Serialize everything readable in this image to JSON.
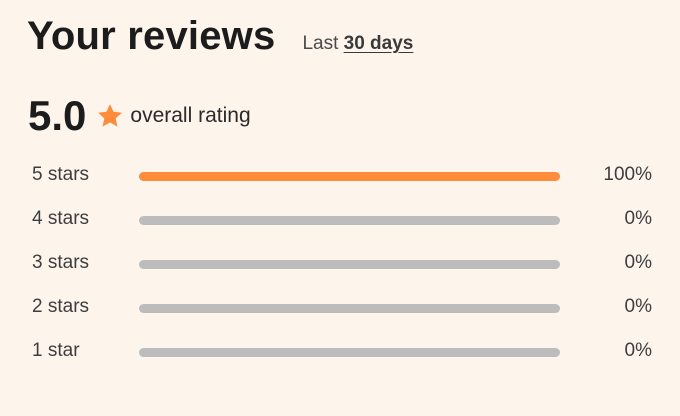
{
  "header": {
    "title": "Your reviews",
    "period_prefix": "Last",
    "period_link": "30 days"
  },
  "overall": {
    "score": "5.0",
    "label": "overall rating",
    "star_icon": "star-icon",
    "accent_color": "#ff8c3a"
  },
  "breakdown": [
    {
      "label": "5 stars",
      "percent_text": "100%",
      "fraction": 1.0
    },
    {
      "label": "4 stars",
      "percent_text": "0%",
      "fraction": 0.0
    },
    {
      "label": "3 stars",
      "percent_text": "0%",
      "fraction": 0.0
    },
    {
      "label": "2 stars",
      "percent_text": "0%",
      "fraction": 0.0
    },
    {
      "label": "1 star",
      "percent_text": "0%",
      "fraction": 0.0
    }
  ]
}
